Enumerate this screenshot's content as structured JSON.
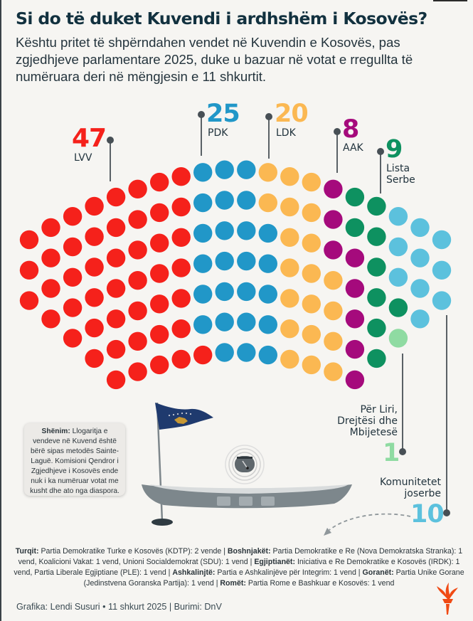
{
  "header": {
    "title": "Si do të duket Kuvendi i ardhshëm i Kosovës?",
    "subtitle": "Kështu pritet të shpërndahen vendet në Kuvendin e Kosovës, pas zgjedhjeve parlamentare 2025, duke u bazuar në votat e rregullta të numëruara deri në mëngjesin e 11 shkurtit."
  },
  "chart_data": {
    "type": "parliament-hemicycle",
    "title": "Si do të duket Kuvendi i ardhshëm i Kosovës?",
    "total_seats": 120,
    "parties": [
      {
        "name": "LVV",
        "seats": 47,
        "color": "#f5211b"
      },
      {
        "name": "PDK",
        "seats": 25,
        "color": "#2197c8"
      },
      {
        "name": "LDK",
        "seats": 20,
        "color": "#fbb852"
      },
      {
        "name": "AAK",
        "seats": 8,
        "color": "#a50a7c"
      },
      {
        "name": "Lista Serbe",
        "seats": 9,
        "color": "#0e9160"
      },
      {
        "name": "Për Liri, Drejtësi dhe Mbijetesë",
        "seats": 1,
        "color": "#8fdba2"
      },
      {
        "name": "Komunitetet joserbe",
        "seats": 10,
        "color": "#5cc1dd"
      }
    ],
    "columns": [
      {
        "count": 3,
        "party": [
          "LVV",
          "LVV",
          "LVV"
        ]
      },
      {
        "count": 4,
        "party": [
          "LVV",
          "LVV",
          "LVV",
          "LVV"
        ]
      },
      {
        "count": 5,
        "party": [
          "LVV",
          "LVV",
          "LVV",
          "LVV",
          "LVV"
        ]
      },
      {
        "count": 6,
        "party": [
          "LVV",
          "LVV",
          "LVV",
          "LVV",
          "LVV",
          "LVV"
        ]
      },
      {
        "count": 7,
        "party": [
          "LVV",
          "LVV",
          "LVV",
          "LVV",
          "LVV",
          "LVV",
          "LVV"
        ]
      },
      {
        "count": 7,
        "party": [
          "LVV",
          "LVV",
          "LVV",
          "LVV",
          "LVV",
          "LVV",
          "LVV"
        ]
      },
      {
        "count": 7,
        "party": [
          "LVV",
          "LVV",
          "LVV",
          "LVV",
          "LVV",
          "LVV",
          "LVV"
        ]
      },
      {
        "count": 7,
        "party": [
          "LVV",
          "LVV",
          "LVV",
          "LVV",
          "LVV",
          "LVV",
          "LVV"
        ]
      },
      {
        "count": 7,
        "party": [
          "PDK",
          "PDK",
          "PDK",
          "PDK",
          "PDK",
          "PDK",
          "LVV"
        ]
      },
      {
        "count": 7,
        "party": [
          "PDK",
          "PDK",
          "PDK",
          "PDK",
          "PDK",
          "PDK",
          "PDK"
        ]
      },
      {
        "count": 7,
        "party": [
          "PDK",
          "PDK",
          "PDK",
          "PDK",
          "PDK",
          "PDK",
          "PDK"
        ]
      },
      {
        "count": 7,
        "party": [
          "LDK",
          "LDK",
          "PDK",
          "PDK",
          "PDK",
          "PDK",
          "PDK"
        ]
      },
      {
        "count": 7,
        "party": [
          "LDK",
          "LDK",
          "LDK",
          "LDK",
          "LDK",
          "LDK",
          "LDK"
        ]
      },
      {
        "count": 7,
        "party": [
          "LDK",
          "LDK",
          "LDK",
          "LDK",
          "LDK",
          "LDK",
          "LDK"
        ]
      },
      {
        "count": 7,
        "party": [
          "AAK",
          "AAK",
          "AAK",
          "LDK",
          "LDK",
          "LDK",
          "LDK"
        ]
      },
      {
        "count": 7,
        "party": [
          "Lista Serbe",
          "Lista Serbe",
          "AAK",
          "AAK",
          "AAK",
          "AAK",
          "AAK"
        ]
      },
      {
        "count": 6,
        "party": [
          "Lista Serbe",
          "Lista Serbe",
          "Lista Serbe",
          "Lista Serbe",
          "Lista Serbe",
          "Lista Serbe"
        ]
      },
      {
        "count": 5,
        "party": [
          "Komunitetet joserbe",
          "Komunitetet joserbe",
          "Komunitetet joserbe",
          "Lista Serbe",
          "Për Liri, Drejtësi dhe Mbijetesë"
        ]
      },
      {
        "count": 4,
        "party": [
          "Komunitetet joserbe",
          "Komunitetet joserbe",
          "Komunitetet joserbe",
          "Komunitetet joserbe"
        ]
      },
      {
        "count": 3,
        "party": [
          "Komunitetet joserbe",
          "Komunitetet joserbe",
          "Komunitetet joserbe"
        ]
      }
    ]
  },
  "labels": {
    "lvv": {
      "seats": "47",
      "name": "LVV"
    },
    "pdk": {
      "seats": "25",
      "name": "PDK"
    },
    "ldk": {
      "seats": "20",
      "name": "LDK"
    },
    "aak": {
      "seats": "8",
      "name": "AAK"
    },
    "srb": {
      "seats": "9",
      "name_line1": "Lista",
      "name_line2": "Serbe"
    },
    "pld": {
      "seats": "1",
      "name_line1": "Për Liri,",
      "name_line2": "Drejtësi dhe",
      "name_line3": "Mbijetesë"
    },
    "kjs": {
      "seats": "10",
      "name_line1": "Komunitetet",
      "name_line2": "joserbe"
    }
  },
  "note": {
    "label": "Shënim:",
    "text": "Llogaritja e vendeve në Kuvend është bërë sipas metodës Sainte-Laguë. Komisioni Qendror i Zgjedhjeve i Kosovës ende nuk i ka numëruar votat me kusht dhe ato nga diaspora."
  },
  "footnote": [
    {
      "group": "Turqit:",
      "text": " Partia Demokratike Turke e Kosovës (KDTP): 2 vende | "
    },
    {
      "group": "Boshnjakët:",
      "text": " Partia Demokratike e Re (Nova Demokratska Stranka): 1 vend, Koalicioni Vakat: 1 vend, Unioni Socialdemokrat (SDU): 1 vend | "
    },
    {
      "group": "Egjiptianët:",
      "text": " Iniciativa e Re Demokratike e Kosovës (IRDK): 1 vend, Partia Liberale Egjiptiane (PLE): 1 vend | "
    },
    {
      "group": "Ashkalinjtë:",
      "text": " Partia e Ashkalinjëve për Integrim: 1 vend | "
    },
    {
      "group": "Goranët:",
      "text": " Partia Unike Gorane (Jedinstvena Goranska Partija): 1 vend | "
    },
    {
      "group": "Romët:",
      "text": " Partia Rome e Bashkuar e Kosovës: 1 vend"
    }
  ],
  "credits": "Grafika: Lendi Susuri • 11 shkurt 2025 | Burimi: DnV",
  "icons": {
    "flag": "kosovo-flag-icon",
    "podium": "speaker-podium-icon",
    "logo": "rfe-torch-logo-icon"
  }
}
